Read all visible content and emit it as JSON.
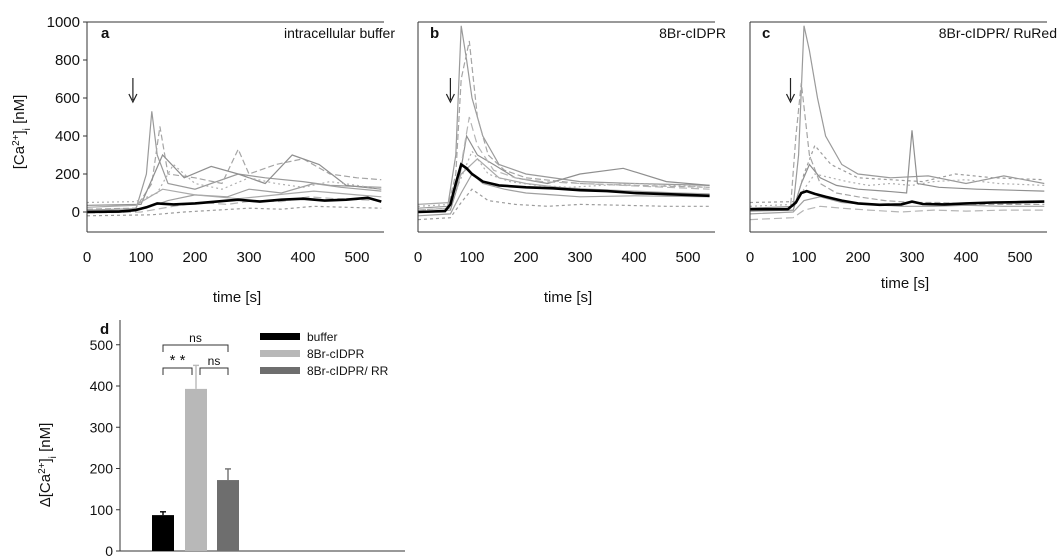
{
  "chart_data": [
    {
      "panel": "a",
      "type": "line",
      "title": "intracellular buffer",
      "ylabel_base": "[Ca",
      "ylabel_sup": "2+",
      "ylabel_close": "]",
      "ylabel_sub": "i",
      "ylabel_unit": " [nM]",
      "xlabel": "time [s]",
      "xlim": [
        0,
        550
      ],
      "ylim": [
        -100,
        1000
      ],
      "xticks": [
        "0",
        "100",
        "200",
        "300",
        "400",
        "500"
      ],
      "xtick_values": [
        0,
        100,
        200,
        300,
        400,
        500
      ],
      "yticks": [
        "0",
        "200",
        "400",
        "600",
        "800",
        "1000"
      ],
      "ytick_values": [
        0,
        200,
        400,
        600,
        800,
        1000
      ],
      "stimulus_time": 85,
      "mean_trace": {
        "x": [
          0,
          60,
          90,
          110,
          130,
          160,
          200,
          240,
          280,
          320,
          360,
          400,
          440,
          480,
          520,
          545
        ],
        "y": [
          0,
          2,
          10,
          25,
          45,
          40,
          45,
          55,
          65,
          55,
          65,
          70,
          60,
          65,
          75,
          55
        ]
      },
      "cell_traces": [
        {
          "x": [
            0,
            90,
            110,
            120,
            130,
            150,
            200,
            280,
            330,
            400,
            450,
            545
          ],
          "y": [
            5,
            10,
            200,
            530,
            300,
            150,
            120,
            200,
            180,
            160,
            140,
            130
          ]
        },
        {
          "x": [
            0,
            90,
            120,
            135,
            150,
            200,
            250,
            280,
            300,
            350,
            400,
            450,
            500,
            545
          ],
          "y": [
            15,
            20,
            150,
            450,
            200,
            180,
            150,
            330,
            200,
            250,
            280,
            200,
            180,
            170
          ]
        },
        {
          "x": [
            0,
            100,
            140,
            180,
            230,
            280,
            330,
            380,
            430,
            480,
            545
          ],
          "y": [
            35,
            40,
            300,
            180,
            240,
            200,
            150,
            300,
            250,
            140,
            120
          ]
        },
        {
          "x": [
            0,
            90,
            130,
            160,
            200,
            250,
            300,
            350,
            400,
            450,
            500,
            545
          ],
          "y": [
            50,
            55,
            100,
            250,
            150,
            120,
            180,
            150,
            130,
            160,
            140,
            120
          ]
        },
        {
          "x": [
            0,
            110,
            150,
            200,
            260,
            300,
            360,
            420,
            470,
            545
          ],
          "y": [
            10,
            20,
            60,
            90,
            80,
            120,
            100,
            150,
            130,
            110
          ]
        },
        {
          "x": [
            0,
            100,
            160,
            210,
            260,
            310,
            360,
            410,
            460,
            545
          ],
          "y": [
            -5,
            0,
            30,
            50,
            40,
            60,
            55,
            80,
            70,
            60
          ]
        },
        {
          "x": [
            0,
            120,
            180,
            240,
            300,
            360,
            420,
            480,
            545
          ],
          "y": [
            -20,
            -15,
            0,
            10,
            20,
            15,
            30,
            25,
            20
          ]
        },
        {
          "x": [
            0,
            90,
            140,
            200,
            280,
            350,
            420,
            500,
            545
          ],
          "y": [
            25,
            35,
            120,
            90,
            70,
            90,
            110,
            90,
            80
          ]
        }
      ]
    },
    {
      "panel": "b",
      "type": "line",
      "title": "8Br-cIDPR",
      "xlabel": "time [s]",
      "xlim": [
        0,
        550
      ],
      "ylim": [
        -100,
        1000
      ],
      "xticks": [
        "0",
        "100",
        "200",
        "300",
        "400",
        "500"
      ],
      "xtick_values": [
        0,
        100,
        200,
        300,
        400,
        500
      ],
      "stimulus_time": 60,
      "mean_trace": {
        "x": [
          0,
          50,
          60,
          70,
          80,
          90,
          100,
          120,
          150,
          200,
          250,
          300,
          350,
          400,
          450,
          500,
          540
        ],
        "y": [
          0,
          5,
          40,
          150,
          250,
          230,
          200,
          160,
          140,
          130,
          125,
          115,
          110,
          100,
          95,
          90,
          85
        ]
      },
      "cell_traces": [
        {
          "x": [
            0,
            55,
            70,
            80,
            90,
            100,
            120,
            150,
            200,
            300,
            400,
            540
          ],
          "y": [
            20,
            30,
            300,
            980,
            800,
            600,
            400,
            250,
            200,
            160,
            150,
            140
          ]
        },
        {
          "x": [
            0,
            55,
            70,
            80,
            95,
            110,
            130,
            160,
            200,
            300,
            400,
            540
          ],
          "y": [
            10,
            20,
            200,
            700,
            900,
            500,
            300,
            220,
            180,
            150,
            140,
            130
          ]
        },
        {
          "x": [
            0,
            60,
            75,
            90,
            110,
            140,
            180,
            240,
            300,
            380,
            460,
            540
          ],
          "y": [
            0,
            10,
            150,
            400,
            300,
            250,
            180,
            150,
            200,
            230,
            160,
            140
          ]
        },
        {
          "x": [
            0,
            60,
            80,
            100,
            130,
            170,
            220,
            280,
            340,
            400,
            470,
            540
          ],
          "y": [
            30,
            40,
            180,
            320,
            200,
            160,
            140,
            130,
            140,
            150,
            140,
            130
          ]
        },
        {
          "x": [
            0,
            60,
            80,
            100,
            120,
            160,
            200,
            250,
            300,
            400,
            540
          ],
          "y": [
            -20,
            -10,
            100,
            200,
            150,
            120,
            100,
            90,
            80,
            85,
            80
          ]
        },
        {
          "x": [
            0,
            60,
            80,
            95,
            110,
            140,
            180,
            230,
            300,
            380,
            460,
            540
          ],
          "y": [
            10,
            20,
            250,
            500,
            350,
            220,
            180,
            160,
            150,
            140,
            130,
            120
          ]
        },
        {
          "x": [
            0,
            60,
            80,
            100,
            130,
            180,
            240,
            300,
            380,
            460,
            540
          ],
          "y": [
            -40,
            -30,
            50,
            120,
            60,
            40,
            30,
            40,
            35,
            30,
            30
          ]
        },
        {
          "x": [
            0,
            60,
            80,
            110,
            150,
            200,
            260,
            320,
            400,
            480,
            540
          ],
          "y": [
            40,
            50,
            200,
            280,
            180,
            150,
            130,
            120,
            110,
            100,
            95
          ]
        }
      ]
    },
    {
      "panel": "c",
      "type": "line",
      "title": "8Br-cIDPR/ RuRed",
      "xlabel": "time [s]",
      "xlim": [
        0,
        550
      ],
      "ylim": [
        -100,
        1000
      ],
      "xticks": [
        "0",
        "100",
        "200",
        "300",
        "400",
        "500"
      ],
      "xtick_values": [
        0,
        100,
        200,
        300,
        400,
        500
      ],
      "stimulus_time": 75,
      "mean_trace": {
        "x": [
          0,
          70,
          85,
          95,
          105,
          120,
          140,
          170,
          200,
          240,
          280,
          300,
          320,
          360,
          400,
          450,
          500,
          545
        ],
        "y": [
          15,
          15,
          50,
          100,
          110,
          95,
          80,
          60,
          45,
          38,
          40,
          55,
          42,
          40,
          45,
          50,
          52,
          55
        ]
      },
      "cell_traces": [
        {
          "x": [
            0,
            80,
            90,
            100,
            110,
            125,
            140,
            170,
            200,
            260,
            330,
            400,
            470,
            545
          ],
          "y": [
            20,
            30,
            300,
            980,
            850,
            600,
            400,
            250,
            200,
            180,
            190,
            150,
            190,
            150
          ]
        },
        {
          "x": [
            0,
            75,
            85,
            95,
            110,
            130,
            160,
            200,
            250,
            300,
            350,
            420,
            480,
            545
          ],
          "y": [
            10,
            20,
            400,
            680,
            300,
            150,
            100,
            80,
            60,
            50,
            50,
            40,
            40,
            40
          ]
        },
        {
          "x": [
            0,
            80,
            95,
            110,
            130,
            160,
            200,
            250,
            290,
            300,
            310,
            350,
            420,
            545
          ],
          "y": [
            5,
            10,
            150,
            250,
            180,
            140,
            120,
            110,
            100,
            430,
            150,
            130,
            120,
            110
          ]
        },
        {
          "x": [
            0,
            80,
            100,
            120,
            150,
            180,
            220,
            260,
            300,
            340,
            400,
            460,
            545
          ],
          "y": [
            30,
            40,
            120,
            200,
            180,
            160,
            140,
            150,
            140,
            160,
            170,
            150,
            140
          ]
        },
        {
          "x": [
            0,
            80,
            100,
            130,
            170,
            220,
            280,
            340,
            400,
            470,
            545
          ],
          "y": [
            -10,
            0,
            60,
            80,
            50,
            40,
            30,
            30,
            35,
            30,
            30
          ]
        },
        {
          "x": [
            0,
            80,
            100,
            130,
            170,
            220,
            280,
            340,
            400,
            470,
            545
          ],
          "y": [
            -40,
            -30,
            10,
            30,
            20,
            10,
            0,
            10,
            5,
            10,
            10
          ]
        },
        {
          "x": [
            0,
            85,
            100,
            120,
            150,
            200,
            260,
            320,
            380,
            450,
            545
          ],
          "y": [
            50,
            55,
            200,
            350,
            250,
            180,
            170,
            160,
            200,
            180,
            170
          ]
        }
      ]
    },
    {
      "panel": "d",
      "type": "bar",
      "ylabel_base": "Δ[Ca",
      "ylabel_sup": "2+",
      "ylabel_close": "]",
      "ylabel_sub": "i",
      "ylabel_unit": " [nM]",
      "ylim": [
        0,
        560
      ],
      "yticks": [
        "0",
        "100",
        "200",
        "300",
        "400",
        "500"
      ],
      "ytick_values": [
        0,
        100,
        200,
        300,
        400,
        500
      ],
      "categories": [
        "buffer",
        "8Br-cIDPR",
        "8Br-cIDPR/ RR"
      ],
      "values": [
        87,
        393,
        172
      ],
      "errors": [
        8,
        57,
        27
      ],
      "colors": [
        "#000000",
        "#b8b8b8",
        "#6e6e6e"
      ],
      "legend": [
        "buffer",
        "8Br-cIDPR",
        "8Br-cIDPR/ RR"
      ],
      "significance": [
        {
          "pair": [
            0,
            2
          ],
          "label": "ns"
        },
        {
          "pair": [
            0,
            1
          ],
          "label": "* *"
        },
        {
          "pair": [
            1,
            2
          ],
          "label": "ns"
        }
      ]
    }
  ]
}
